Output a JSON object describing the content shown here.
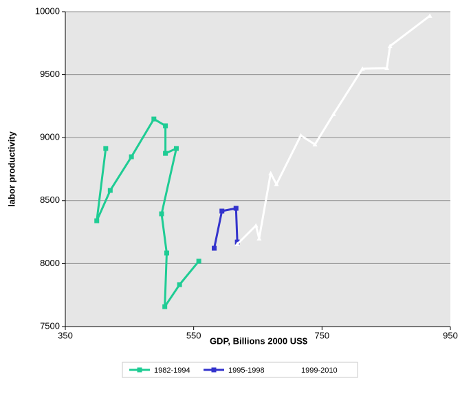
{
  "chart_data": {
    "type": "line",
    "x_label": "GDP, Billions 2000 US$",
    "y_label": "labor productivity",
    "xlim": [
      350,
      950
    ],
    "xticks": [
      350,
      550,
      750,
      950
    ],
    "ylim": [
      7500,
      10000
    ],
    "yticks": [
      7500,
      8000,
      8500,
      9000,
      9500,
      10000
    ],
    "grid": true,
    "legend": "bottom",
    "series": [
      {
        "name": "1982-1994",
        "color": "#1fcc94",
        "marker": "square",
        "x": [
          413,
          399,
          420,
          453,
          488,
          506,
          506,
          523,
          500,
          508,
          505,
          528,
          558
        ],
        "values": [
          8914,
          8340,
          8581,
          8848,
          9148,
          9094,
          8875,
          8914,
          8395,
          8084,
          7658,
          7833,
          8019
        ]
      },
      {
        "name": "1995-1998",
        "color": "#3333cc",
        "marker": "square",
        "x": [
          582,
          594,
          616,
          618
        ],
        "values": [
          8122,
          8417,
          8439,
          8171
        ]
      },
      {
        "name": "1999-2010",
        "color": "#ffffff",
        "marker": "triangle",
        "x": [
          618,
          647,
          652,
          670,
          679,
          717,
          739,
          768,
          813,
          851,
          856,
          918
        ],
        "values": [
          8155,
          8302,
          8199,
          8717,
          8630,
          9017,
          8946,
          9187,
          9547,
          9552,
          9727,
          9967
        ]
      }
    ]
  }
}
